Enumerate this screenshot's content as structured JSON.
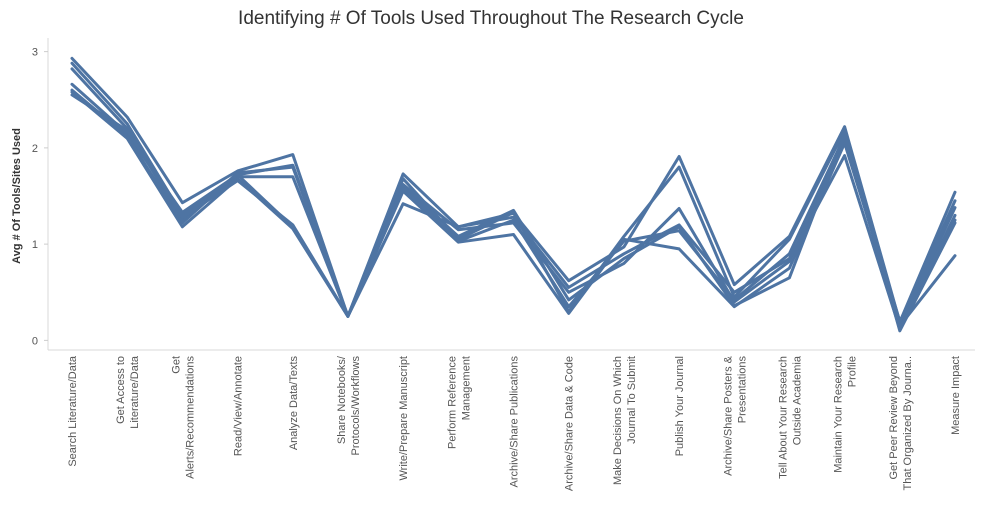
{
  "chart_data": {
    "type": "line",
    "title": "Identifying # Of Tools Used Throughout The Research Cycle",
    "xlabel": "",
    "ylabel": "Avg # Of Tools/Sites Used",
    "ylim": [
      -0.1,
      3.1
    ],
    "yticks": [
      0,
      1,
      2,
      3
    ],
    "grid": false,
    "legend": "none",
    "color": "#4e74a3",
    "categories": [
      [
        "Search Literature/Data"
      ],
      [
        "Get Access to",
        "Literature/Data"
      ],
      [
        "Get",
        "Alerts/Recommendations"
      ],
      [
        "Read/View/Annotate"
      ],
      [
        "Analyze Data/Texts"
      ],
      [
        "Share Notebooks/",
        "Protocols/Workflows"
      ],
      [
        "Write/Prepare Manuscript"
      ],
      [
        "Perform Reference",
        "Management"
      ],
      [
        "Archive/Share Publications"
      ],
      [
        "Archive/Share Data & Code"
      ],
      [
        "Make Decisions On Which",
        "Journal To Submit"
      ],
      [
        "Publish Your Journal"
      ],
      [
        "Archive/Share Posters &",
        "Presentations"
      ],
      [
        "Tell About Your Research",
        "Outside Academia"
      ],
      [
        "Maintain Your Research",
        "Profile"
      ],
      [
        "Get Peer Review Beyond",
        "That Organized By Journa.."
      ],
      [
        "Measure Impact"
      ]
    ],
    "series": [
      {
        "values": [
          2.93,
          2.32,
          1.43,
          1.76,
          1.93,
          0.25,
          1.73,
          1.18,
          1.32,
          0.62,
          0.97,
          1.91,
          0.58,
          1.08,
          2.22,
          0.19,
          1.54
        ]
      },
      {
        "values": [
          2.88,
          2.25,
          1.3,
          1.72,
          1.82,
          0.25,
          1.68,
          1.05,
          1.33,
          0.3,
          1.08,
          1.8,
          0.45,
          1.05,
          2.18,
          0.17,
          1.45
        ]
      },
      {
        "values": [
          2.82,
          2.2,
          1.25,
          1.7,
          1.7,
          0.25,
          1.62,
          1.15,
          1.22,
          0.5,
          0.8,
          1.37,
          0.4,
          0.82,
          2.1,
          0.14,
          1.38
        ]
      },
      {
        "values": [
          2.66,
          2.15,
          1.33,
          1.72,
          1.18,
          0.25,
          1.42,
          1.18,
          1.28,
          0.55,
          0.9,
          1.2,
          0.5,
          0.85,
          1.92,
          0.12,
          1.3
        ]
      },
      {
        "values": [
          2.6,
          2.12,
          1.22,
          1.74,
          1.8,
          0.25,
          1.55,
          1.02,
          1.1,
          0.28,
          1.05,
          0.95,
          0.35,
          0.75,
          2.05,
          0.2,
          1.25
        ]
      },
      {
        "values": [
          2.58,
          2.1,
          1.18,
          1.68,
          1.16,
          0.25,
          1.6,
          1.08,
          1.35,
          0.42,
          0.85,
          1.18,
          0.36,
          0.65,
          2.15,
          0.1,
          1.22
        ]
      },
      {
        "values": [
          2.55,
          2.18,
          1.28,
          1.66,
          1.2,
          0.25,
          1.58,
          1.03,
          1.25,
          0.35,
          1.03,
          1.14,
          0.42,
          0.9,
          2.12,
          0.15,
          0.88
        ]
      }
    ]
  }
}
